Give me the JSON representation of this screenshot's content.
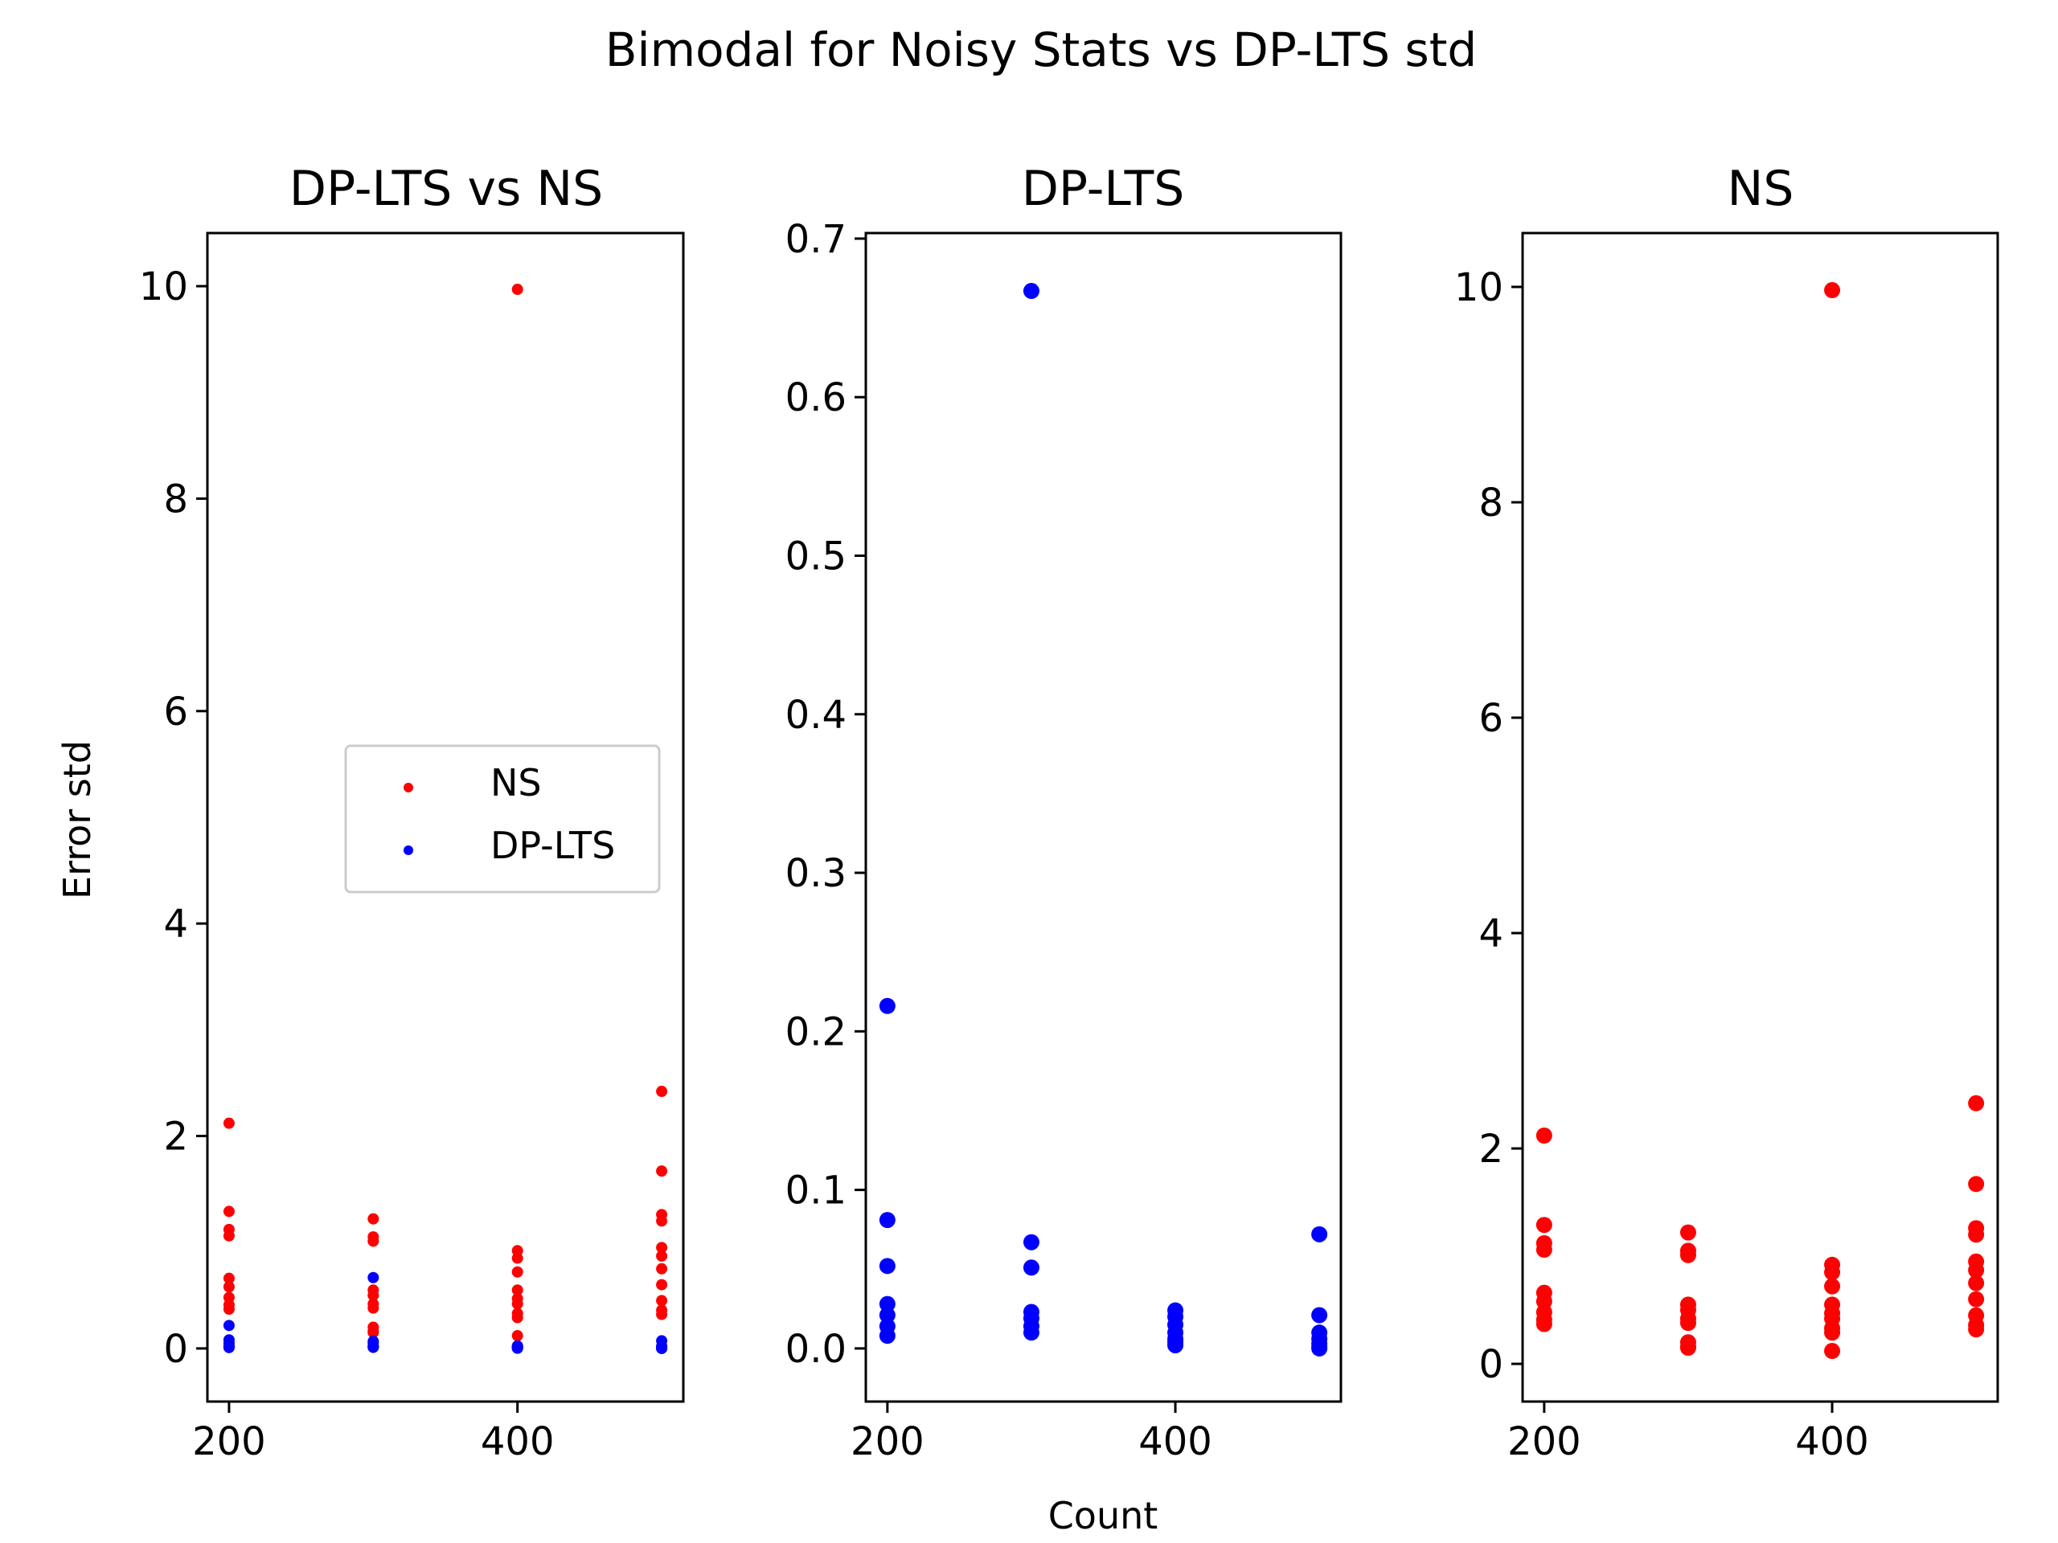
{
  "figure": {
    "suptitle": "Bimodal for Noisy Stats vs DP-LTS std",
    "shared_xlabel": "Count",
    "shared_ylabel": "Error std"
  },
  "colors": {
    "NS": "#ff0000",
    "DP-LTS": "#0000ff"
  },
  "chart_data": [
    {
      "type": "scatter",
      "title": "DP-LTS vs NS",
      "xlabel": "",
      "ylabel": "Error std",
      "xlim": [
        185,
        515
      ],
      "ylim": [
        -0.5,
        10.5
      ],
      "xticks": [
        200,
        400
      ],
      "yticks": [
        0,
        2,
        4,
        6,
        8,
        10
      ],
      "legend": {
        "placement": "center-right",
        "entries": [
          "NS",
          "DP-LTS"
        ]
      },
      "series": [
        {
          "name": "NS",
          "color": "#ff0000",
          "x": [
            200,
            200,
            200,
            200,
            200,
            200,
            200,
            200,
            200,
            300,
            300,
            300,
            300,
            300,
            300,
            300,
            300,
            300,
            300,
            400,
            400,
            400,
            400,
            400,
            400,
            400,
            400,
            400,
            400,
            500,
            500,
            500,
            500,
            500,
            500,
            500,
            500,
            500,
            500,
            500
          ],
          "y": [
            2.12,
            1.29,
            1.12,
            1.06,
            0.66,
            0.58,
            0.48,
            0.41,
            0.37,
            1.22,
            1.05,
            1.01,
            0.55,
            0.5,
            0.42,
            0.38,
            0.2,
            0.16,
            0.15,
            9.97,
            0.92,
            0.85,
            0.72,
            0.55,
            0.47,
            0.42,
            0.33,
            0.29,
            0.12,
            2.42,
            1.67,
            1.26,
            1.2,
            0.95,
            0.87,
            0.75,
            0.6,
            0.45,
            0.36,
            0.32
          ]
        },
        {
          "name": "DP-LTS",
          "color": "#0000ff",
          "x": [
            200,
            200,
            200,
            200,
            200,
            200,
            200,
            300,
            300,
            300,
            300,
            300,
            300,
            300,
            400,
            400,
            400,
            400,
            400,
            400,
            400,
            500,
            500,
            500,
            500,
            500,
            500,
            500
          ],
          "y": [
            0.216,
            0.081,
            0.052,
            0.028,
            0.021,
            0.014,
            0.008,
            0.667,
            0.067,
            0.051,
            0.023,
            0.019,
            0.014,
            0.01,
            0.024,
            0.02,
            0.015,
            0.01,
            0.006,
            0.004,
            0.002,
            0.072,
            0.021,
            0.01,
            0.006,
            0.003,
            0.001,
            0
          ],
          "_note": ""
        }
      ]
    },
    {
      "type": "scatter",
      "title": "DP-LTS",
      "xlabel": "Count",
      "ylabel": "",
      "xlim": [
        185,
        515
      ],
      "ylim": [
        -0.0335,
        0.7035
      ],
      "xticks": [
        200,
        400
      ],
      "yticks": [
        0.0,
        0.1,
        0.2,
        0.3,
        0.4,
        0.5,
        0.6,
        0.7
      ],
      "ytick_labels": [
        "0.0",
        "0.1",
        "0.2",
        "0.3",
        "0.4",
        "0.5",
        "0.6",
        "0.7"
      ],
      "series": [
        {
          "name": "DP-LTS",
          "color": "#0000ff",
          "x": [
            200,
            200,
            200,
            200,
            200,
            200,
            200,
            300,
            300,
            300,
            300,
            300,
            300,
            300,
            400,
            400,
            400,
            400,
            400,
            400,
            400,
            500,
            500,
            500,
            500,
            500,
            500,
            500
          ],
          "y": [
            0.216,
            0.081,
            0.052,
            0.028,
            0.021,
            0.014,
            0.008,
            0.667,
            0.067,
            0.051,
            0.023,
            0.019,
            0.014,
            0.01,
            0.024,
            0.02,
            0.015,
            0.01,
            0.006,
            0.004,
            0.002,
            0.072,
            0.021,
            0.01,
            0.006,
            0.003,
            0.001,
            0
          ]
        }
      ]
    },
    {
      "type": "scatter",
      "title": "NS",
      "xlabel": "",
      "ylabel": "",
      "xlim": [
        185,
        515
      ],
      "ylim": [
        -0.35,
        10.5
      ],
      "xticks": [
        200,
        400
      ],
      "yticks": [
        0,
        2,
        4,
        6,
        8,
        10
      ],
      "series": [
        {
          "name": "NS",
          "color": "#ff0000",
          "x": [
            200,
            200,
            200,
            200,
            200,
            200,
            200,
            200,
            200,
            300,
            300,
            300,
            300,
            300,
            300,
            300,
            300,
            300,
            300,
            400,
            400,
            400,
            400,
            400,
            400,
            400,
            400,
            400,
            400,
            500,
            500,
            500,
            500,
            500,
            500,
            500,
            500,
            500,
            500,
            500
          ],
          "y": [
            2.12,
            1.29,
            1.12,
            1.06,
            0.66,
            0.58,
            0.48,
            0.41,
            0.37,
            1.22,
            1.05,
            1.01,
            0.55,
            0.5,
            0.42,
            0.38,
            0.2,
            0.16,
            0.15,
            9.97,
            0.92,
            0.85,
            0.72,
            0.55,
            0.47,
            0.42,
            0.33,
            0.29,
            0.12,
            2.42,
            1.67,
            1.26,
            1.2,
            0.95,
            0.87,
            0.75,
            0.6,
            0.45,
            0.36,
            0.32
          ]
        }
      ]
    }
  ]
}
